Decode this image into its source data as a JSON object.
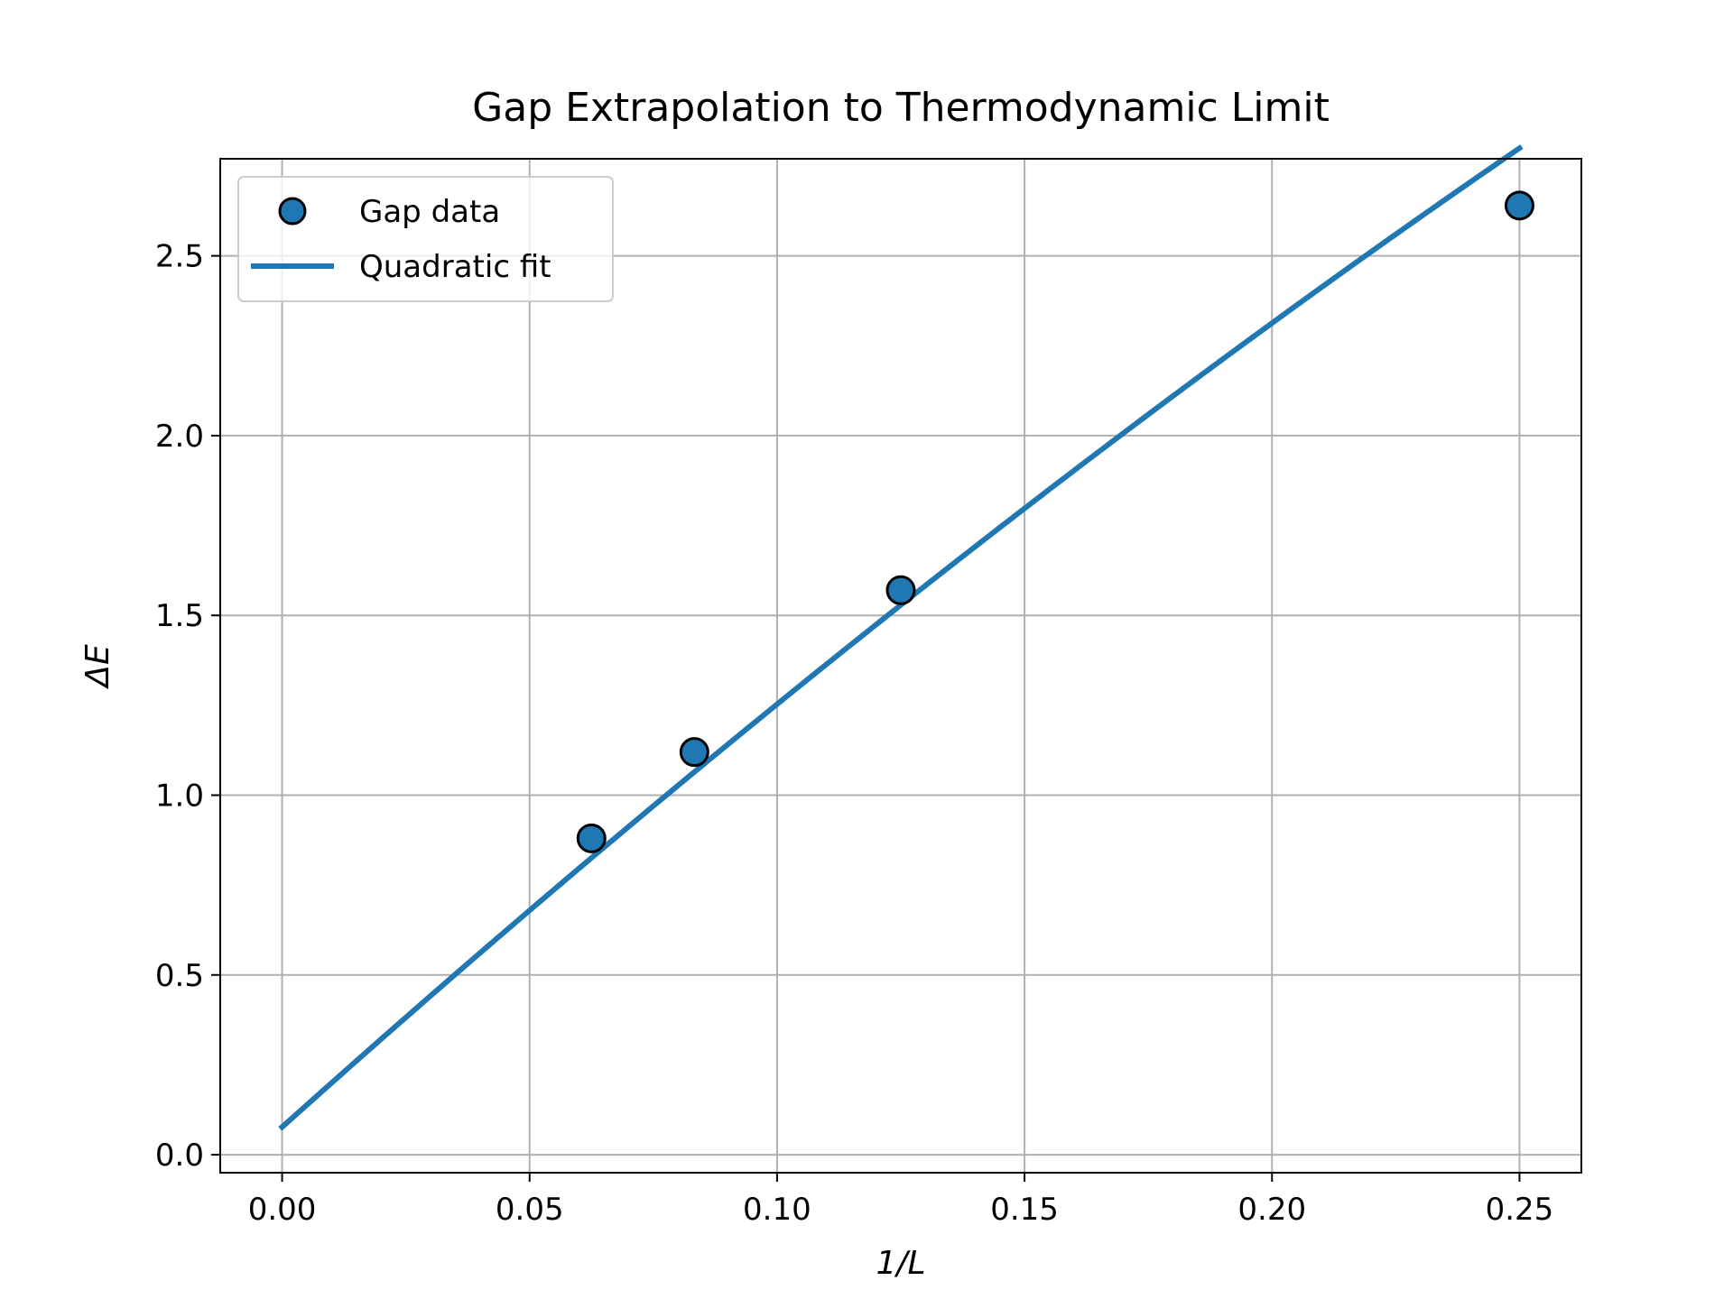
{
  "chart_data": {
    "type": "scatter",
    "title": "Gap Extrapolation to Thermodynamic Limit",
    "xlabel": "1/L",
    "ylabel": "ΔE",
    "xlim": [
      -0.0125,
      0.2625
    ],
    "ylim": [
      -0.05,
      2.77
    ],
    "xticks": [
      0.0,
      0.05,
      0.1,
      0.15,
      0.2,
      0.25
    ],
    "xtick_labels": [
      "0.00",
      "0.05",
      "0.10",
      "0.15",
      "0.20",
      "0.25"
    ],
    "yticks": [
      0.0,
      0.5,
      1.0,
      1.5,
      2.0,
      2.5
    ],
    "ytick_labels": [
      "0.0",
      "0.5",
      "1.0",
      "1.5",
      "2.0",
      "2.5"
    ],
    "grid": true,
    "legend_position": "top-left",
    "series": [
      {
        "name": "Gap data",
        "kind": "scatter",
        "color": "#1f77b4",
        "edgecolor": "#000000",
        "x": [
          0.0625,
          0.0833,
          0.125,
          0.25
        ],
        "y": [
          0.88,
          1.12,
          1.57,
          2.64
        ]
      },
      {
        "name": "Quadratic fit",
        "kind": "line",
        "color": "#1f77b4",
        "x_range": [
          0.0,
          0.25
        ],
        "coefficients": {
          "a": -5.8,
          "b": 12.34,
          "c": 0.077
        }
      }
    ]
  }
}
